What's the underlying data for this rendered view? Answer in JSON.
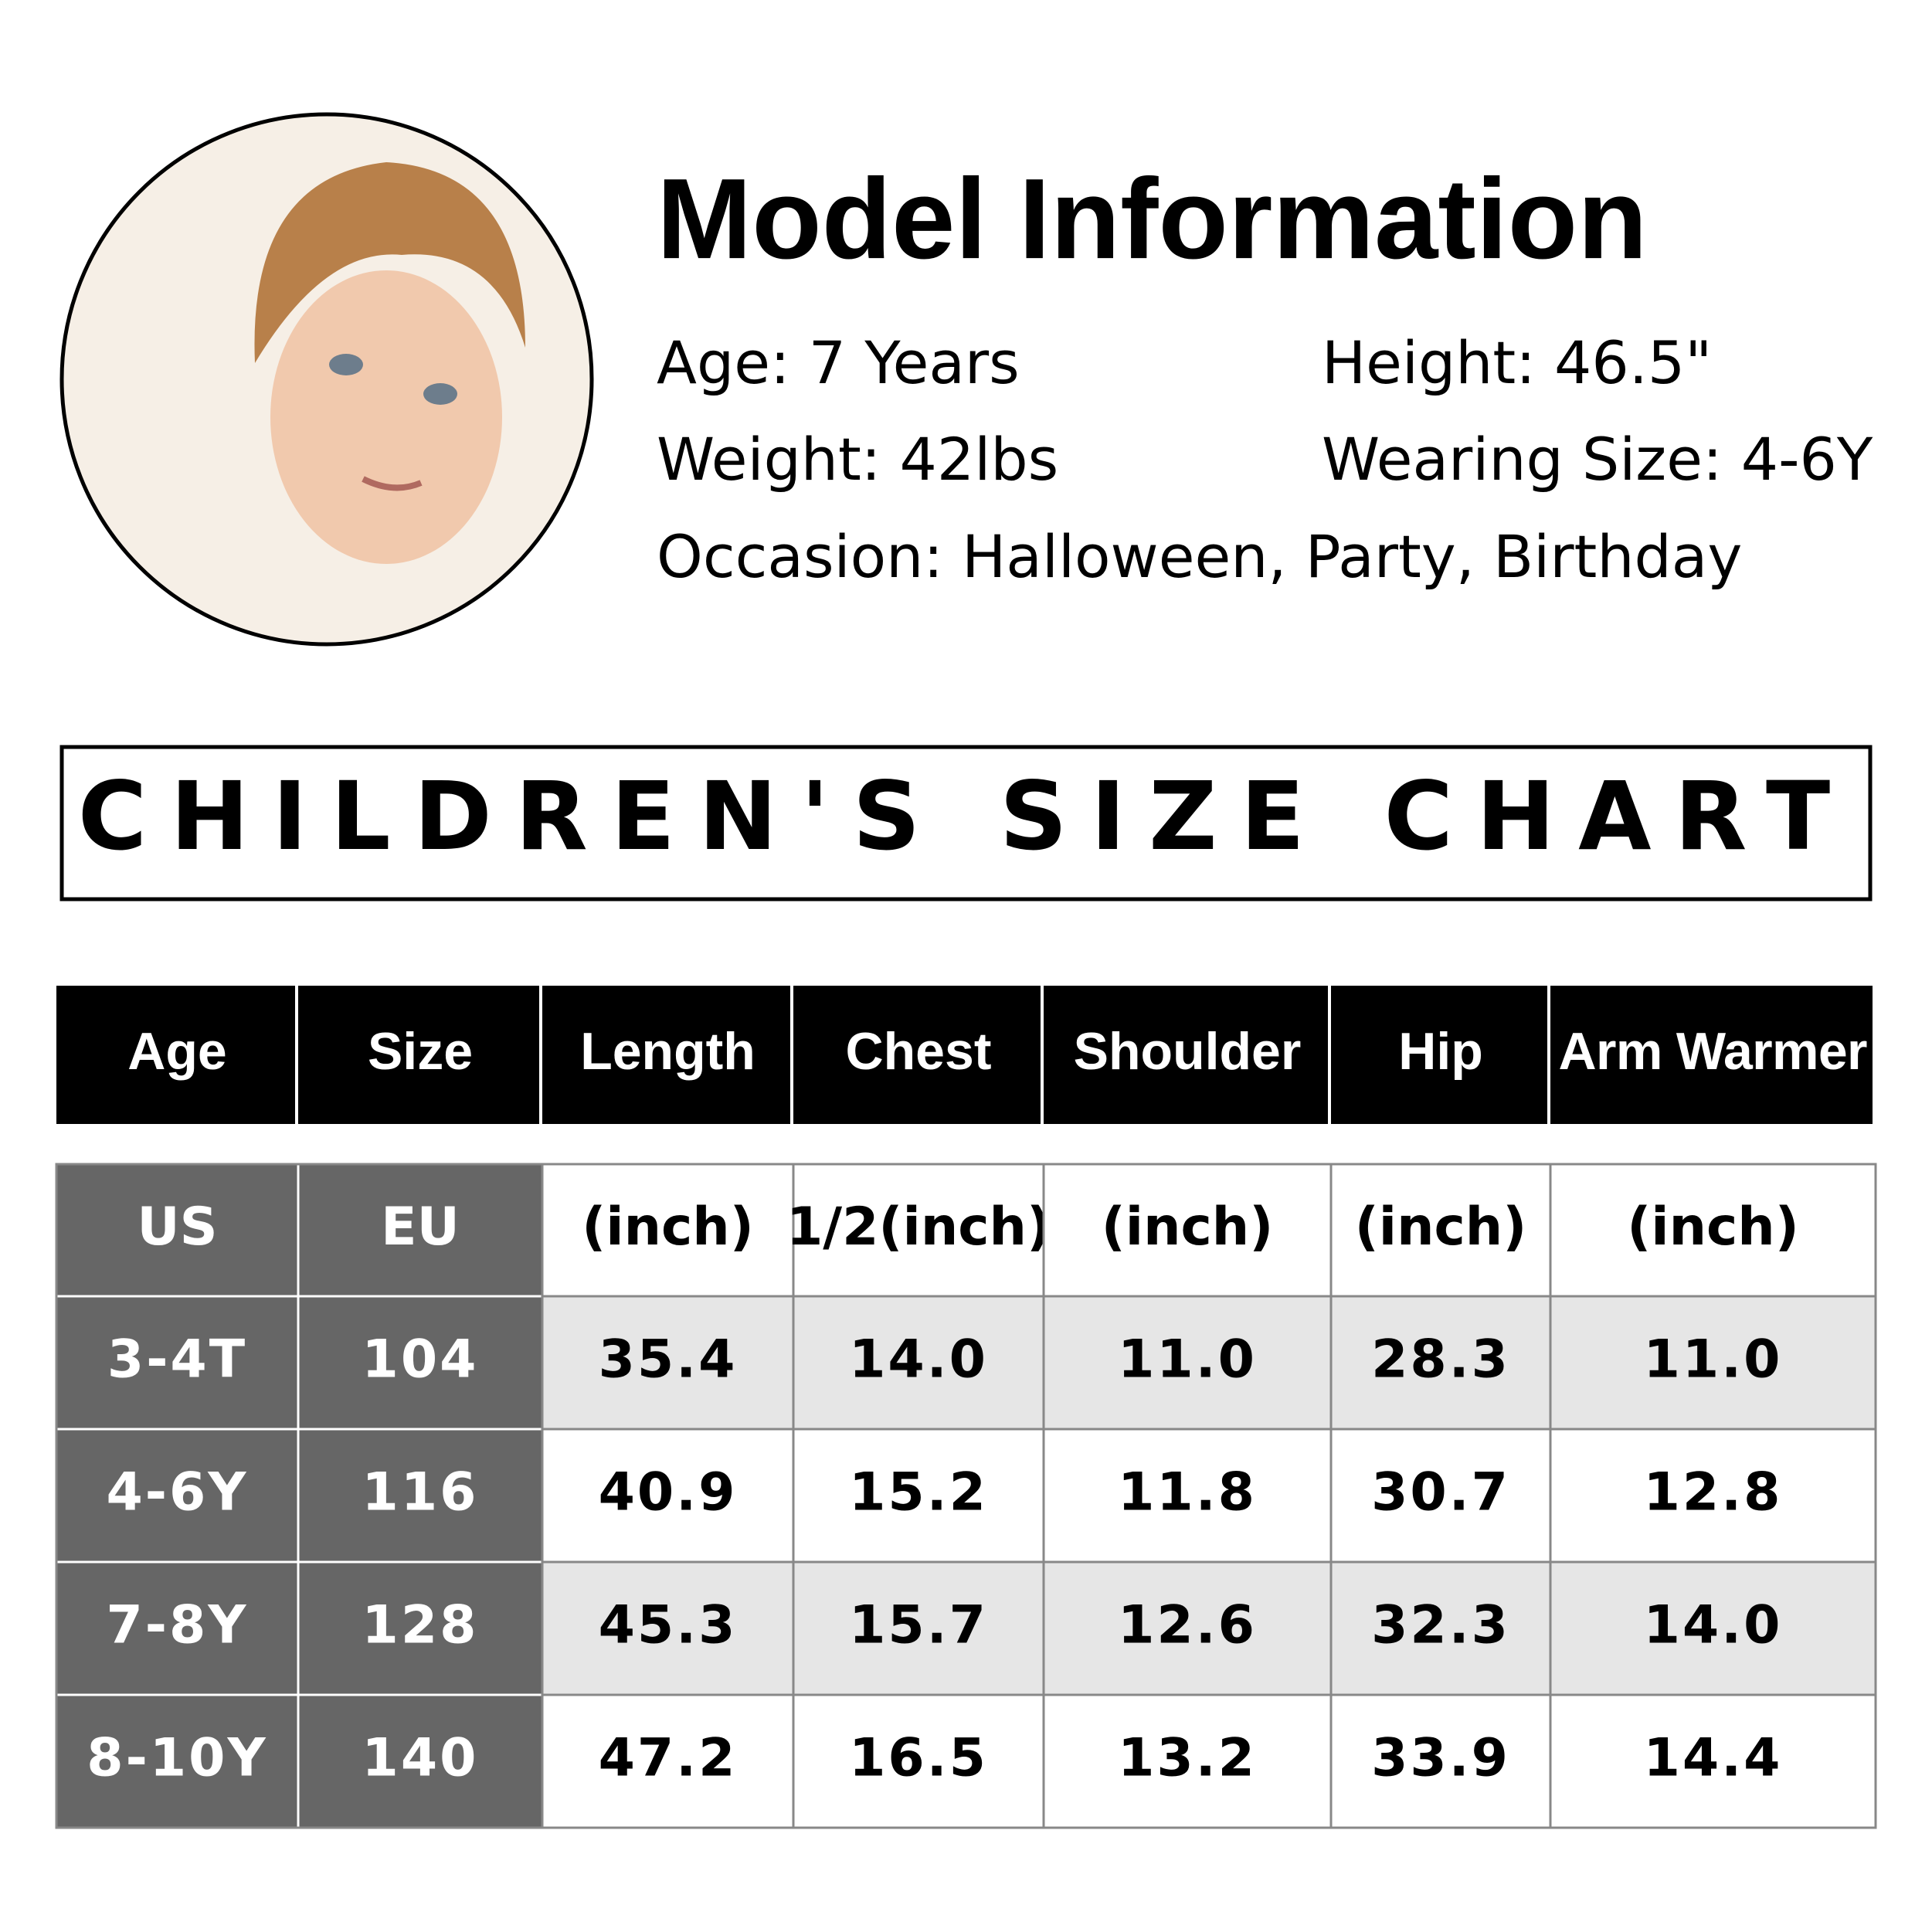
{
  "model": {
    "title": "Model Information",
    "details": [
      "Age: 7 Years",
      "Height: 46.5\"",
      "Weight: 42lbs",
      "Wearing Size: 4-6Y",
      "Occasion: Halloween, Party, Birthday"
    ]
  },
  "chart_title": "CHILDREN'S SIZE CHART",
  "table": {
    "header": [
      "Age",
      "Size",
      "Length",
      "Chest",
      "Shoulder",
      "Hip",
      "Arm Warmer"
    ],
    "units": [
      "US",
      "EU",
      "(inch)",
      "1/2(inch)",
      "(inch)",
      "(inch)",
      "(inch)"
    ],
    "rows": [
      [
        "3-4T",
        "104",
        "35.4",
        "14.0",
        "11.0",
        "28.3",
        "11.0"
      ],
      [
        "4-6Y",
        "116",
        "40.9",
        "15.2",
        "11.8",
        "30.7",
        "12.8"
      ],
      [
        "7-8Y",
        "128",
        "45.3",
        "15.7",
        "12.6",
        "32.3",
        "14.0"
      ],
      [
        "8-10Y",
        "140",
        "47.2",
        "16.5",
        "13.2",
        "33.9",
        "14.4"
      ]
    ]
  }
}
